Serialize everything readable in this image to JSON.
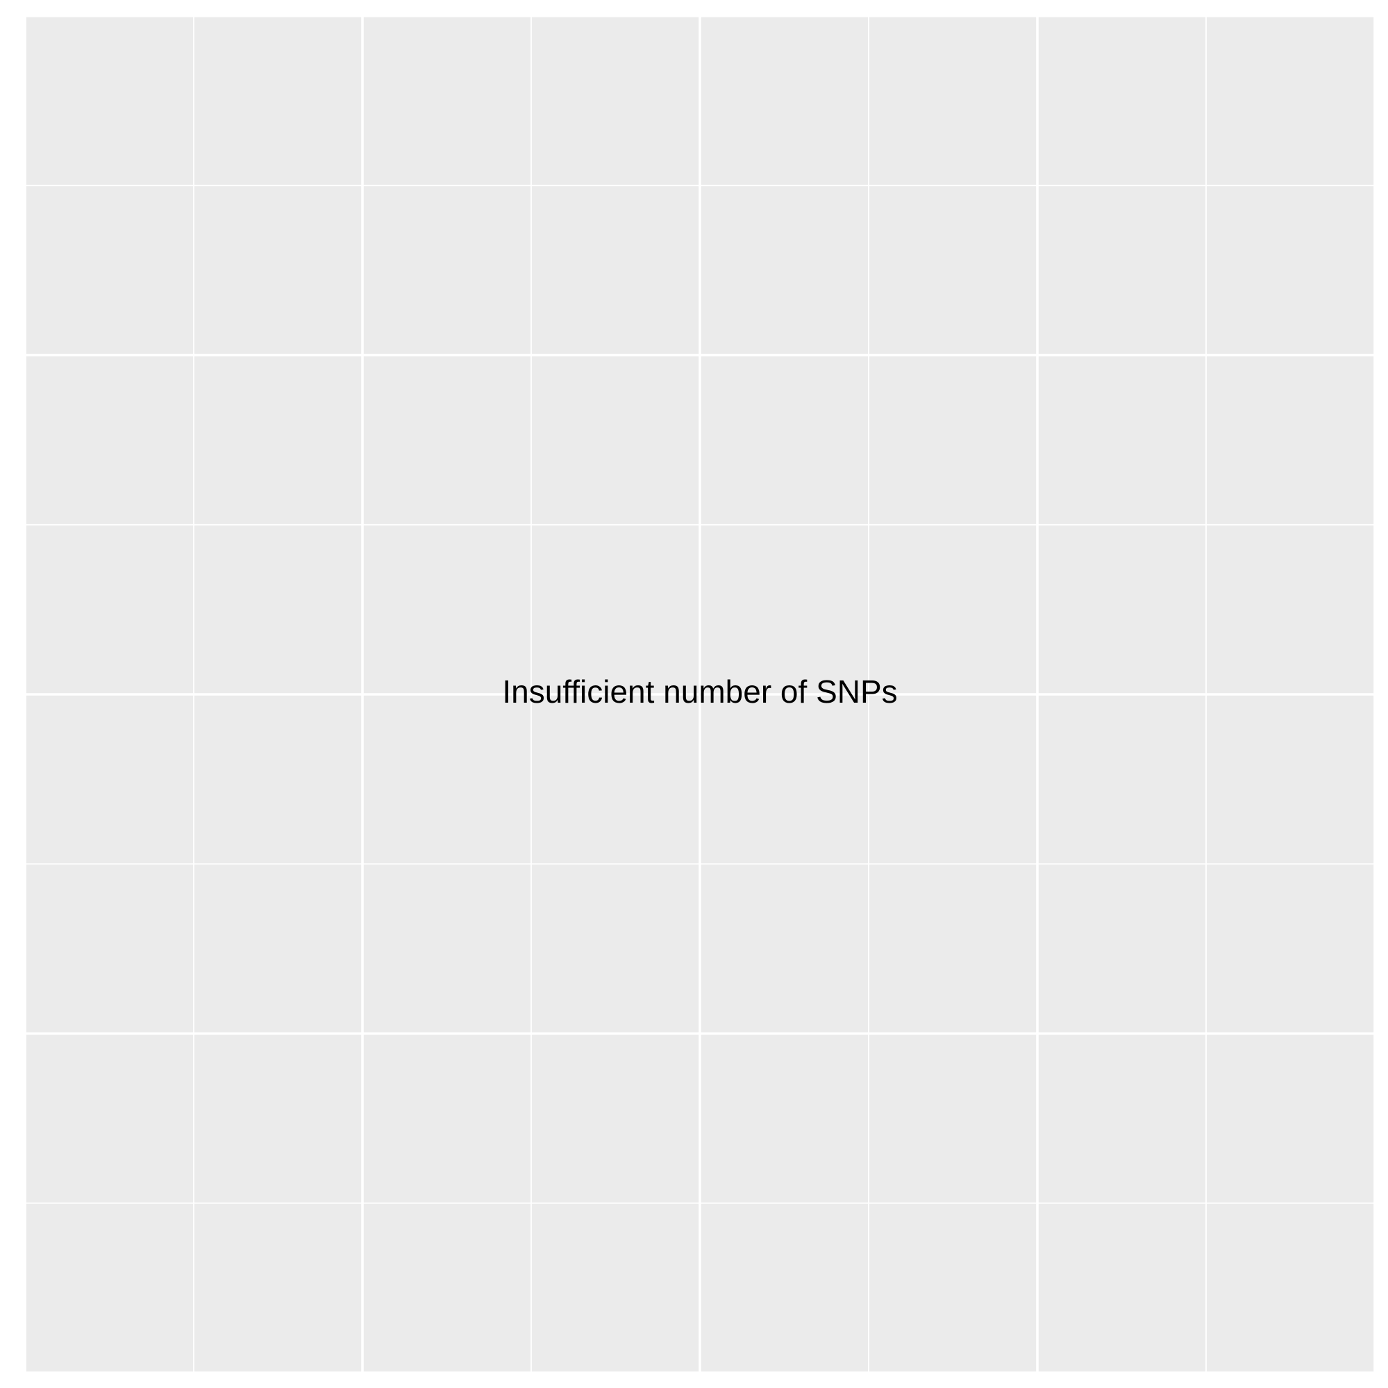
{
  "chart_data": {
    "type": "scatter",
    "title": "",
    "xlabel": "",
    "ylabel": "",
    "x": [],
    "y": [],
    "xlim": [
      0,
      1
    ],
    "ylim": [
      0,
      1
    ],
    "grid": true,
    "annotations": [
      {
        "text": "Insufficient number of SNPs",
        "x": 0.5,
        "y": 0.5
      }
    ],
    "colors": {
      "panel_background": "#EBEBEB",
      "grid": "#FFFFFF",
      "text": "#000000"
    }
  }
}
